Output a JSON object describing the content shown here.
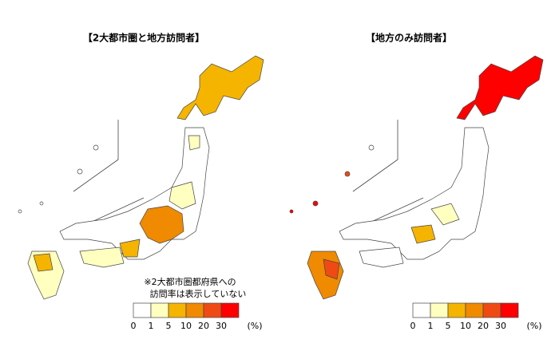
{
  "maps": [
    {
      "title": "【2大都市圏と地方訪問者】",
      "note": [
        "※2大都市圏都府県への",
        "訪問率は表示していない"
      ]
    },
    {
      "title": "【地方のみ訪問者】"
    }
  ],
  "legend": {
    "colors": [
      "#ffffff",
      "#ffffc0",
      "#f5b400",
      "#f08a00",
      "#f04a14",
      "#ff0000"
    ],
    "ticks": [
      0,
      1,
      5,
      10,
      20,
      30
    ],
    "unit": "(%)"
  }
}
